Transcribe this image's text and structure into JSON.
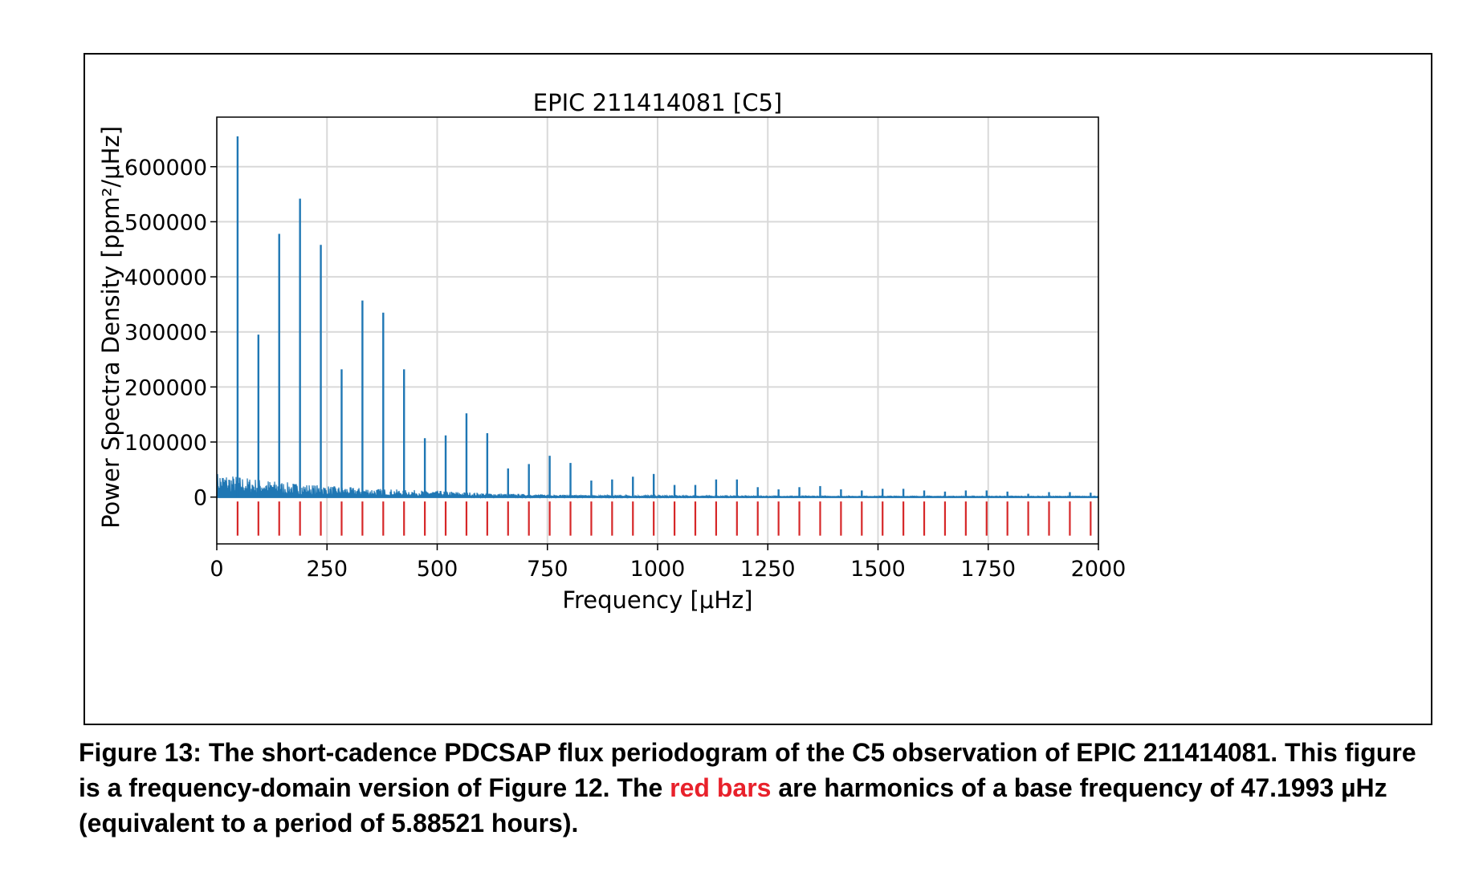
{
  "caption": {
    "part1": "Figure 13: The short-cadence PDCSAP flux periodogram of the C5 observation of EPIC 211414081. This figure is a frequency-domain version of Figure 12.  The ",
    "highlight": "red bars",
    "part2": " are harmonics of a base frequency of 47.1993 µHz (equivalent to a period of 5.88521 hours)."
  },
  "colors": {
    "line": "#1f77b4",
    "harmonic": "#d62728",
    "caption_highlight": "#e8212b",
    "grid": "#d9d9d9"
  },
  "chart_data": {
    "type": "line",
    "title": "EPIC 211414081  [C5]",
    "xlabel": "Frequency  [μHz]",
    "ylabel": "Power Spectra Density  [ppm²/μHz]",
    "xlim": [
      0,
      2000
    ],
    "ylim": [
      -85000,
      690000
    ],
    "x_ticks": [
      0,
      250,
      500,
      750,
      1000,
      1250,
      1500,
      1750,
      2000
    ],
    "y_ticks": [
      0,
      100000,
      200000,
      300000,
      400000,
      500000,
      600000
    ],
    "grid": true,
    "base_frequency": 47.1993,
    "series": [
      {
        "type": "peaks",
        "x": [
          47.2,
          94.4,
          141.6,
          188.8,
          236.0,
          283.2,
          330.4,
          377.6,
          424.8,
          472.0,
          519.2,
          566.4,
          613.6,
          660.8,
          708.0,
          755.2,
          802.4,
          849.6,
          896.8,
          944.0,
          991.2,
          1038.4,
          1085.6,
          1132.8,
          1180.0,
          1227.2,
          1274.4,
          1321.6,
          1368.8,
          1416.0,
          1463.2,
          1510.4,
          1557.6,
          1604.8,
          1652.0,
          1699.2,
          1746.4,
          1793.6,
          1840.8,
          1888.0,
          1935.2,
          1982.4
        ],
        "y": [
          655000,
          295000,
          478000,
          542000,
          458000,
          232000,
          357000,
          335000,
          232000,
          107000,
          112000,
          152000,
          116000,
          52000,
          60000,
          75000,
          62000,
          30000,
          32000,
          37000,
          42000,
          22000,
          22000,
          32000,
          32000,
          18000,
          14000,
          18000,
          20000,
          14000,
          12000,
          15000,
          15000,
          12000,
          10000,
          12000,
          12000,
          10000,
          6000,
          9000,
          9000,
          8000
        ]
      },
      {
        "type": "harmonic_markers",
        "x": [
          47.2,
          94.4,
          141.6,
          188.8,
          236.0,
          283.2,
          330.4,
          377.6,
          424.8,
          472.0,
          519.2,
          566.4,
          613.6,
          660.8,
          708.0,
          755.2,
          802.4,
          849.6,
          896.8,
          944.0,
          991.2,
          1038.4,
          1085.6,
          1132.8,
          1180.0,
          1227.2,
          1274.4,
          1321.6,
          1368.8,
          1416.0,
          1463.2,
          1510.4,
          1557.6,
          1604.8,
          1652.0,
          1699.2,
          1746.4,
          1793.6,
          1840.8,
          1888.0,
          1935.2,
          1982.4
        ],
        "y_range": [
          -8000,
          -70000
        ]
      }
    ]
  }
}
